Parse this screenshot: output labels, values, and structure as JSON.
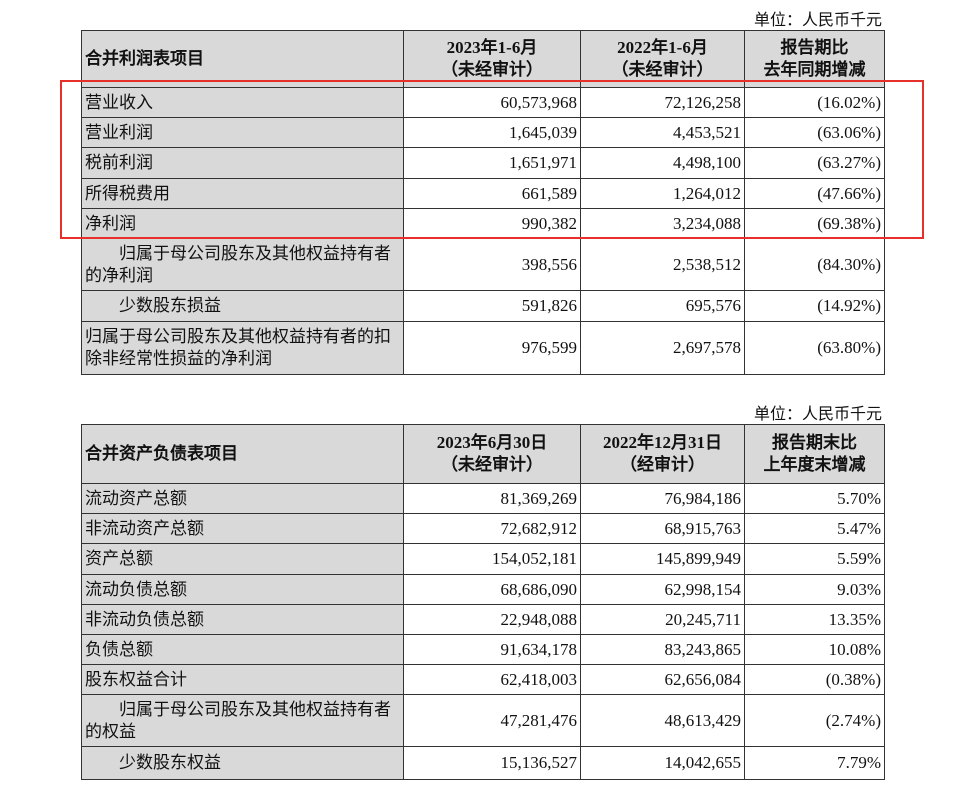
{
  "income": {
    "unit": "单位：人民币千元",
    "headers": [
      "合并利润表项目",
      "2023年1-6月",
      "（未经审计）",
      "2022年1-6月",
      "（未经审计）",
      "报告期比",
      "去年同期增减"
    ],
    "rows": [
      {
        "label": "营业收入",
        "a": "60,573,968",
        "b": "72,126,258",
        "c": "(16.02%)"
      },
      {
        "label": "营业利润",
        "a": "1,645,039",
        "b": "4,453,521",
        "c": "(63.06%)"
      },
      {
        "label": "税前利润",
        "a": "1,651,971",
        "b": "4,498,100",
        "c": "(63.27%)"
      },
      {
        "label": "所得税费用",
        "a": "661,589",
        "b": "1,264,012",
        "c": "(47.66%)"
      },
      {
        "label": "净利润",
        "a": "990,382",
        "b": "3,234,088",
        "c": "(69.38%)"
      },
      {
        "label": "归属于母公司股东及其他权益持有者的净利润",
        "a": "398,556",
        "b": "2,538,512",
        "c": "(84.30%)"
      },
      {
        "label": "少数股东损益",
        "a": "591,826",
        "b": "695,576",
        "c": "(14.92%)"
      },
      {
        "label": "归属于母公司股东及其他权益持有者的扣除非经常性损益的净利润",
        "a": "976,599",
        "b": "2,697,578",
        "c": "(63.80%)"
      }
    ],
    "highlight_color": "#e8302a"
  },
  "balance": {
    "unit": "单位：人民币千元",
    "headers": [
      "合并资产负债表项目",
      "2023年6月30日",
      "（未经审计）",
      "2022年12月31日",
      "（经审计）",
      "报告期末比",
      "上年度末增减"
    ],
    "rows": [
      {
        "label": "流动资产总额",
        "a": "81,369,269",
        "b": "76,984,186",
        "c": "5.70%"
      },
      {
        "label": "非流动资产总额",
        "a": "72,682,912",
        "b": "68,915,763",
        "c": "5.47%"
      },
      {
        "label": "资产总额",
        "a": "154,052,181",
        "b": "145,899,949",
        "c": "5.59%"
      },
      {
        "label": "流动负债总额",
        "a": "68,686,090",
        "b": "62,998,154",
        "c": "9.03%"
      },
      {
        "label": "非流动负债总额",
        "a": "22,948,088",
        "b": "20,245,711",
        "c": "13.35%"
      },
      {
        "label": "负债总额",
        "a": "91,634,178",
        "b": "83,243,865",
        "c": "10.08%"
      },
      {
        "label": "股东权益合计",
        "a": "62,418,003",
        "b": "62,656,084",
        "c": "(0.38%)"
      },
      {
        "label": "归属于母公司股东及其他权益持有者的权益",
        "a": "47,281,476",
        "b": "48,613,429",
        "c": "(2.74%)"
      },
      {
        "label": "少数股东权益",
        "a": "15,136,527",
        "b": "14,042,655",
        "c": "7.79%"
      }
    ]
  }
}
